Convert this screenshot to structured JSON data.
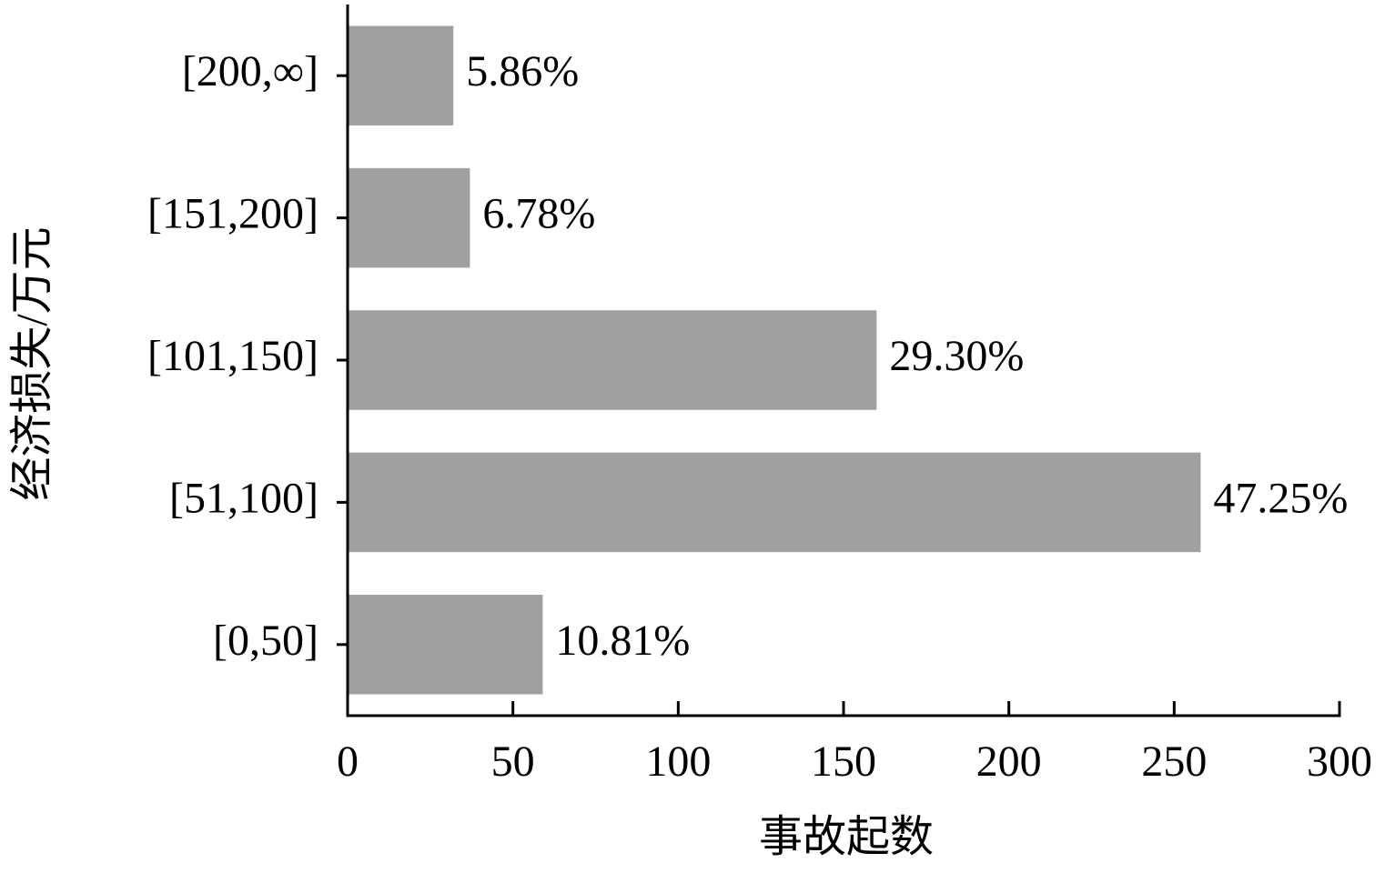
{
  "chart_data": {
    "type": "bar",
    "orientation": "horizontal",
    "xlabel": "事故起数",
    "ylabel": "经济损失/万元",
    "categories": [
      "[0,50]",
      "[51,100]",
      "[101,150]",
      "[151,200]",
      "[200,∞]"
    ],
    "values": [
      59,
      258,
      160,
      37,
      32
    ],
    "percent_labels": [
      "10.81%",
      "47.25%",
      "29.30%",
      "6.78%",
      "5.86%"
    ],
    "color": "#a0a0a0",
    "xlim": [
      0,
      300
    ],
    "xticks": [
      0,
      50,
      100,
      150,
      200,
      250,
      300
    ],
    "grid": false
  }
}
